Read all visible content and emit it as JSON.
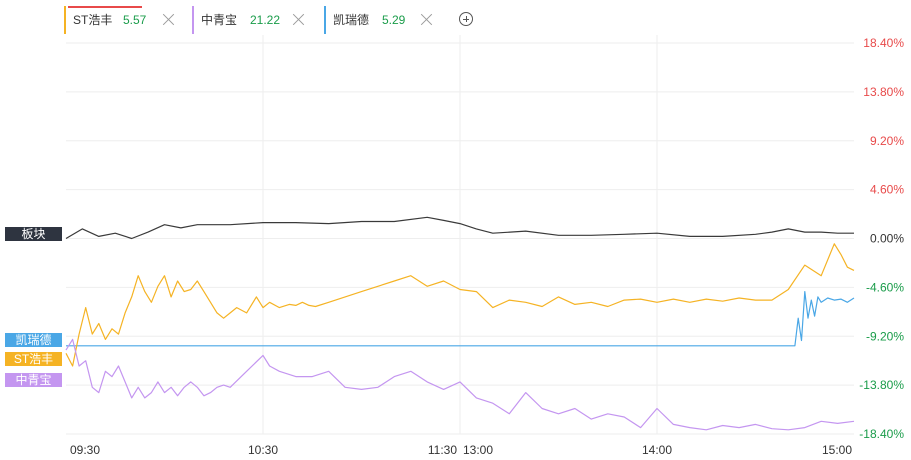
{
  "tabs": [
    {
      "name": "ST浩丰",
      "value": "5.57",
      "color": "#f5b324"
    },
    {
      "name": "中青宝",
      "value": "21.22",
      "color": "#c496f0"
    },
    {
      "name": "凯瑞德",
      "value": "5.29",
      "color": "#4aa7e6"
    }
  ],
  "add_icon": "plus-circle-icon",
  "close_icon": "close-icon",
  "series_tags": [
    {
      "label": "板块",
      "color": "#2e3440"
    },
    {
      "label": "凯瑞德",
      "color": "#4aa7e6"
    },
    {
      "label": "ST浩丰",
      "color": "#f5b324"
    },
    {
      "label": "中青宝",
      "color": "#c496f0"
    }
  ],
  "chart_data": {
    "type": "line",
    "x_ticks": [
      "09:30",
      "10:30",
      "11:30",
      "13:00",
      "14:00",
      "15:00"
    ],
    "y_ticks": [
      "18.40%",
      "13.80%",
      "9.20%",
      "4.60%",
      "0.00%",
      "-4.60%",
      "-9.20%",
      "-13.80%",
      "-18.40%"
    ],
    "y_tick_values": [
      18.4,
      13.8,
      9.2,
      4.6,
      0.0,
      -4.6,
      -9.2,
      -13.8,
      -18.4
    ],
    "ylim": [
      -18.4,
      18.4
    ],
    "x_unit": "trading minutes",
    "xlim": [
      0,
      240
    ],
    "grid": true,
    "positive_color": "#e84a4a",
    "negative_color": "#1a9c4a",
    "series": [
      {
        "name": "板块",
        "color": "#3a3a3a",
        "x": [
          0,
          5,
          10,
          15,
          20,
          25,
          30,
          35,
          40,
          50,
          60,
          70,
          80,
          90,
          100,
          110,
          115,
          120,
          125,
          130,
          140,
          150,
          160,
          170,
          180,
          190,
          200,
          210,
          215,
          220,
          225,
          230,
          235,
          240
        ],
        "y": [
          0.0,
          0.9,
          0.2,
          0.5,
          0.0,
          0.6,
          1.3,
          1.0,
          1.3,
          1.3,
          1.5,
          1.5,
          1.4,
          1.6,
          1.6,
          2.0,
          1.7,
          1.4,
          0.9,
          0.5,
          0.7,
          0.3,
          0.3,
          0.4,
          0.5,
          0.2,
          0.2,
          0.4,
          0.6,
          0.9,
          0.6,
          0.6,
          0.5,
          0.5
        ]
      },
      {
        "name": "凯瑞德",
        "color": "#4aa7e6",
        "x": [
          0,
          5,
          50,
          100,
          150,
          200,
          222,
          223,
          224,
          225,
          226,
          227,
          228,
          229,
          230,
          232,
          234,
          236,
          238,
          240
        ],
        "y": [
          -10.1,
          -10.1,
          -10.1,
          -10.1,
          -10.1,
          -10.1,
          -10.1,
          -7.5,
          -9.6,
          -5.0,
          -7.5,
          -5.8,
          -7.3,
          -5.5,
          -6.0,
          -5.6,
          -5.8,
          -5.7,
          -6.0,
          -5.6
        ]
      },
      {
        "name": "ST浩丰",
        "color": "#f5b324",
        "x": [
          0,
          2,
          4,
          6,
          8,
          10,
          12,
          14,
          16,
          18,
          20,
          22,
          24,
          26,
          28,
          30,
          32,
          34,
          36,
          38,
          40,
          42,
          44,
          46,
          48,
          50,
          52,
          55,
          58,
          60,
          62,
          65,
          68,
          70,
          72,
          74,
          76,
          80,
          85,
          90,
          95,
          100,
          105,
          110,
          115,
          120,
          125,
          130,
          135,
          140,
          145,
          150,
          155,
          160,
          165,
          170,
          175,
          180,
          185,
          190,
          195,
          200,
          205,
          210,
          215,
          220,
          225,
          230,
          234,
          236,
          238,
          240
        ],
        "y": [
          -10.8,
          -12.0,
          -9.0,
          -6.5,
          -9.0,
          -8.0,
          -9.5,
          -8.5,
          -9.0,
          -7.0,
          -5.5,
          -3.5,
          -5.0,
          -6.0,
          -4.5,
          -3.5,
          -5.5,
          -4.0,
          -5.0,
          -4.8,
          -4.0,
          -5.0,
          -6.0,
          -7.0,
          -7.5,
          -7.0,
          -6.5,
          -7.0,
          -5.5,
          -6.5,
          -6.0,
          -6.5,
          -6.2,
          -6.3,
          -6.0,
          -6.3,
          -6.4,
          -6.0,
          -5.5,
          -5.0,
          -4.5,
          -4.0,
          -3.5,
          -4.5,
          -4.0,
          -4.8,
          -5.0,
          -6.5,
          -5.8,
          -6.0,
          -6.4,
          -5.5,
          -6.2,
          -6.0,
          -6.4,
          -5.8,
          -5.7,
          -6.0,
          -5.7,
          -6.0,
          -5.7,
          -5.9,
          -5.6,
          -5.8,
          -5.8,
          -4.8,
          -2.5,
          -3.5,
          -0.5,
          -1.5,
          -2.7,
          -3.0
        ]
      },
      {
        "name": "中青宝",
        "color": "#c496f0",
        "x": [
          0,
          2,
          4,
          6,
          8,
          10,
          12,
          14,
          16,
          18,
          20,
          22,
          24,
          26,
          28,
          30,
          32,
          34,
          36,
          38,
          40,
          42,
          44,
          46,
          48,
          50,
          55,
          60,
          62,
          65,
          70,
          75,
          80,
          85,
          90,
          95,
          100,
          105,
          110,
          115,
          120,
          125,
          130,
          135,
          140,
          145,
          150,
          155,
          160,
          165,
          170,
          175,
          180,
          185,
          190,
          195,
          200,
          205,
          210,
          215,
          220,
          225,
          230,
          235,
          240
        ],
        "y": [
          -10.5,
          -9.5,
          -12.0,
          -11.5,
          -14.0,
          -14.5,
          -12.5,
          -13.0,
          -12.0,
          -13.5,
          -15.0,
          -14.0,
          -15.0,
          -14.5,
          -13.5,
          -14.5,
          -14.0,
          -14.8,
          -14.0,
          -13.5,
          -14.0,
          -14.8,
          -14.5,
          -14.0,
          -13.8,
          -14.0,
          -12.5,
          -11.0,
          -12.0,
          -12.5,
          -13.0,
          -13.0,
          -12.5,
          -14.0,
          -14.2,
          -14.0,
          -13.0,
          -12.5,
          -13.5,
          -14.2,
          -13.5,
          -15.0,
          -15.5,
          -16.5,
          -14.5,
          -16.0,
          -16.5,
          -16.0,
          -17.0,
          -16.5,
          -16.8,
          -17.8,
          -16.0,
          -17.5,
          -17.8,
          -18.0,
          -17.6,
          -17.8,
          -17.5,
          -17.9,
          -18.0,
          -17.8,
          -17.2,
          -17.4,
          -17.2
        ]
      }
    ]
  }
}
